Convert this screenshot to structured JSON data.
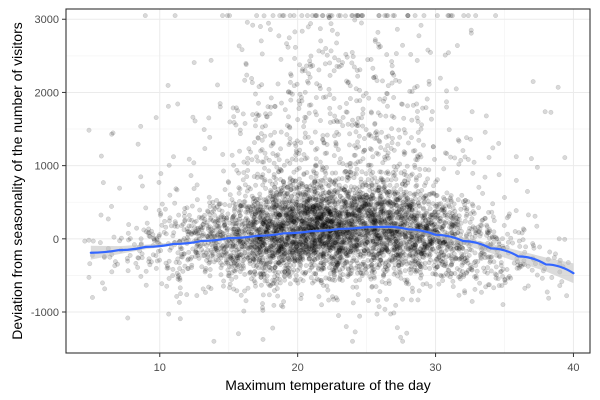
{
  "chart_data": {
    "type": "scatter",
    "title": "",
    "xlabel": "Maximum temperature of the day",
    "ylabel": "Deviation from seasonality of the number of visitors",
    "xlim": [
      3.2,
      41.2
    ],
    "ylim": [
      -1560,
      3140
    ],
    "x_ticks": [
      10,
      20,
      30,
      40
    ],
    "y_ticks": [
      -1000,
      0,
      1000,
      2000,
      3000
    ],
    "x_tick_labels": [
      "10",
      "20",
      "30",
      "40"
    ],
    "y_tick_labels": [
      "-1000",
      "0",
      "1000",
      "2000",
      "3000"
    ],
    "grid": true,
    "colors": {
      "points_fill": "#000000",
      "points_stroke": "#000000",
      "smooth_line": "#3366FF",
      "confidence_band": "#BDBDBD",
      "panel_border": "#333333",
      "grid_major": "#EBEBEB",
      "grid_minor": "#F5F5F5"
    },
    "point_alpha": 0.15,
    "point_count_estimate": 5200,
    "point_density_profile": {
      "x": [
        4,
        6,
        8,
        10,
        12,
        14,
        16,
        18,
        20,
        22,
        24,
        26,
        28,
        30,
        32,
        34,
        36,
        38,
        40
      ],
      "relative_density": [
        0.01,
        0.03,
        0.05,
        0.1,
        0.18,
        0.32,
        0.55,
        0.82,
        1.0,
        1.02,
        0.95,
        0.86,
        0.7,
        0.5,
        0.3,
        0.16,
        0.08,
        0.04,
        0.02
      ]
    },
    "trend": {
      "name": "",
      "x": [
        5,
        7,
        9,
        11,
        13,
        15,
        17,
        19,
        21,
        23,
        25,
        26.5,
        28,
        30,
        32,
        34,
        36,
        38,
        40
      ],
      "y": [
        -190,
        -155,
        -110,
        -70,
        -30,
        10,
        40,
        75,
        105,
        135,
        160,
        165,
        130,
        55,
        -30,
        -130,
        -240,
        -350,
        -470
      ],
      "ci_upper": [
        -95,
        -100,
        -80,
        -48,
        -12,
        25,
        55,
        90,
        120,
        152,
        180,
        190,
        160,
        95,
        20,
        -65,
        -160,
        -255,
        -335
      ],
      "ci_lower": [
        -285,
        -210,
        -140,
        -92,
        -48,
        -5,
        25,
        60,
        90,
        118,
        140,
        140,
        100,
        15,
        -80,
        -195,
        -320,
        -445,
        -605
      ]
    }
  }
}
